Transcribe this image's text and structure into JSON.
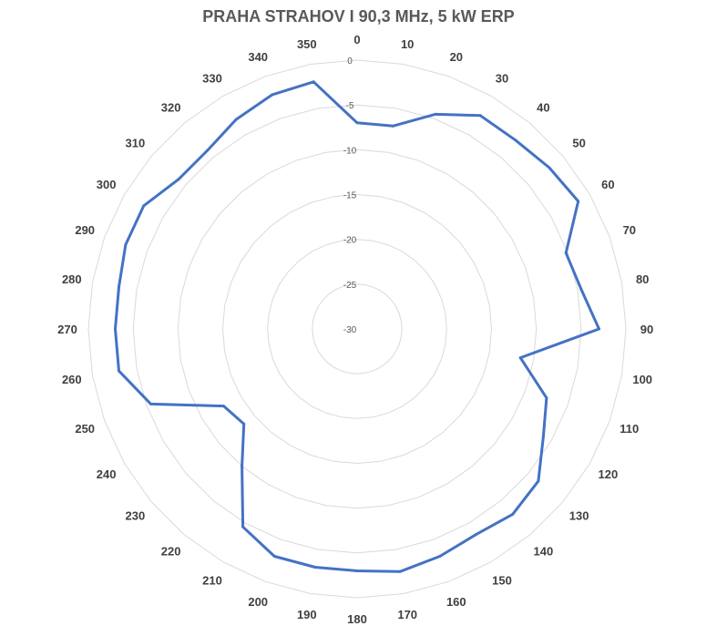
{
  "chart_data": {
    "type": "radar",
    "title": "PRAHA STRAHOV I 90,3 MHz, 5 kW ERP",
    "angle_labels": [
      "0",
      "10",
      "20",
      "30",
      "40",
      "50",
      "60",
      "70",
      "80",
      "90",
      "100",
      "110",
      "120",
      "130",
      "140",
      "150",
      "160",
      "170",
      "180",
      "190",
      "200",
      "210",
      "220",
      "230",
      "240",
      "250",
      "260",
      "270",
      "280",
      "290",
      "300",
      "310",
      "320",
      "330",
      "340",
      "350"
    ],
    "radial_ticks": [
      "0",
      "-5",
      "-10",
      "-15",
      "-20",
      "-25",
      "-30"
    ],
    "rlim": [
      -30,
      0
    ],
    "grid": true,
    "series": [
      {
        "color": "#4472c4",
        "values": [
          -7,
          -7,
          -4.5,
          -2.5,
          -2.5,
          -2,
          -1.5,
          -5.2,
          -4.6,
          -3,
          -11.5,
          -7.5,
          -6,
          -3.6,
          -3,
          -3.5,
          -3,
          -2.5,
          -3,
          -3,
          -3,
          -4.5,
          -10,
          -13.5,
          -12.8,
          -5.5,
          -3,
          -3,
          -3,
          -2.5,
          -2.5,
          -4,
          -4,
          -3,
          -2.2,
          -2
        ]
      }
    ]
  }
}
